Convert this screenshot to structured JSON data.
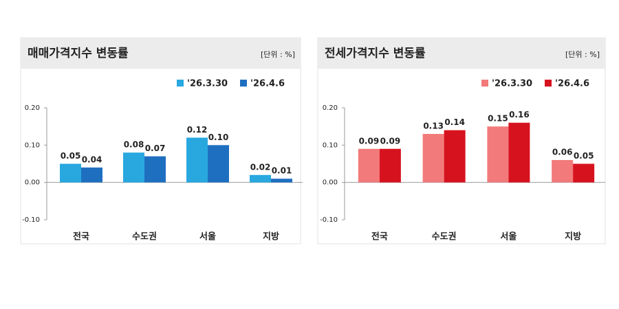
{
  "chart_data": [
    {
      "type": "bar",
      "title": "매매가격지수 변동률",
      "unit": "[단위 : %]",
      "categories": [
        "전국",
        "수도권",
        "서울",
        "지방"
      ],
      "series": [
        {
          "name": "'26.3.30",
          "color": "#29a8e0",
          "values": [
            0.05,
            0.08,
            0.12,
            0.02
          ],
          "value_labels": [
            "0.05",
            "0.08",
            "0.12",
            "0.02"
          ]
        },
        {
          "name": "'26.4.6",
          "color": "#1f6fc0",
          "values": [
            0.04,
            0.07,
            0.1,
            0.01
          ],
          "value_labels": [
            "0.04",
            "0.07",
            "0.10",
            "0.01"
          ]
        }
      ],
      "ylim": [
        -0.1,
        0.2
      ],
      "yticks": [
        {
          "value": -0.1,
          "label": "-0.10"
        },
        {
          "value": 0,
          "label": "0.00"
        },
        {
          "value": 0.1,
          "label": "0.10"
        },
        {
          "value": 0.2,
          "label": "0.20"
        }
      ]
    },
    {
      "type": "bar",
      "title": "전세가격지수 변동률",
      "unit": "[단위 : %]",
      "categories": [
        "전국",
        "수도권",
        "서울",
        "지방"
      ],
      "series": [
        {
          "name": "'26.3.30",
          "color": "#f27a7a",
          "values": [
            0.09,
            0.13,
            0.15,
            0.06
          ],
          "value_labels": [
            "0.09",
            "0.13",
            "0.15",
            "0.06"
          ]
        },
        {
          "name": "'26.4.6",
          "color": "#d7121f",
          "values": [
            0.09,
            0.14,
            0.16,
            0.05
          ],
          "value_labels": [
            "0.09",
            "0.14",
            "0.16",
            "0.05"
          ]
        }
      ],
      "ylim": [
        -0.1,
        0.2
      ],
      "yticks": [
        {
          "value": -0.1,
          "label": "-0.10"
        },
        {
          "value": 0,
          "label": "0.00"
        },
        {
          "value": 0.1,
          "label": "0.10"
        },
        {
          "value": 0.2,
          "label": "0.20"
        }
      ]
    }
  ]
}
